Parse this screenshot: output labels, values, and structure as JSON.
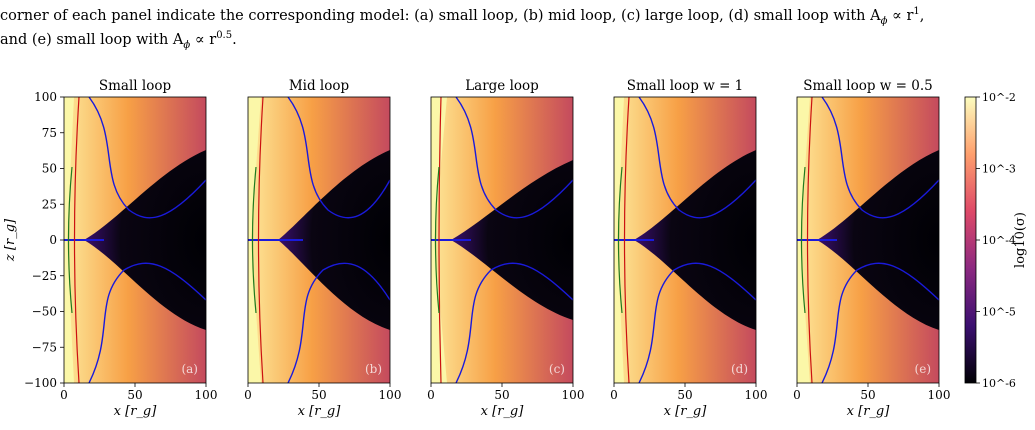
{
  "caption": {
    "line1": "corner of each panel indicate the corresponding model: (a) small loop, (b) mid loop, (c) large loop, (d) small loop with A",
    "line1_sub": "ϕ",
    "line1_tail": " ∝ r",
    "line1_sup": "1",
    "line1_end": ",",
    "line2_pre": "and (e) small loop with A",
    "line2_sub": "ϕ",
    "line2_mid": " ∝ r",
    "line2_sup": "0.5",
    "line2_end": "."
  },
  "figure": {
    "panels": [
      {
        "title": "Small loop",
        "tag": "(a)"
      },
      {
        "title": "Mid loop",
        "tag": "(b)"
      },
      {
        "title": "Large loop",
        "tag": "(c)"
      },
      {
        "title": "Small loop w = 1",
        "tag": "(d)"
      },
      {
        "title": "Small loop w = 0.5",
        "tag": "(e)"
      }
    ],
    "xlabel": "x [r_g]",
    "ylabel": "z [r_g]",
    "x_ticks": [
      "0",
      "50",
      "100"
    ],
    "y_ticks": [
      "100",
      "75",
      "50",
      "25",
      "0",
      "−25",
      "−50",
      "−75",
      "−100"
    ],
    "colorbar": {
      "label": "log10(σ)",
      "ticks": [
        "10^-2",
        "10^-3",
        "10^-4",
        "10^-5",
        "10^-6"
      ],
      "colormap": [
        "#000004",
        "#3b0f70",
        "#8c2981",
        "#de4968",
        "#fe9f6d",
        "#fcfdbf"
      ]
    },
    "contour_colors": {
      "blue": "#1a1adb",
      "red": "#cc1111",
      "green": "#1f7a1f"
    }
  }
}
